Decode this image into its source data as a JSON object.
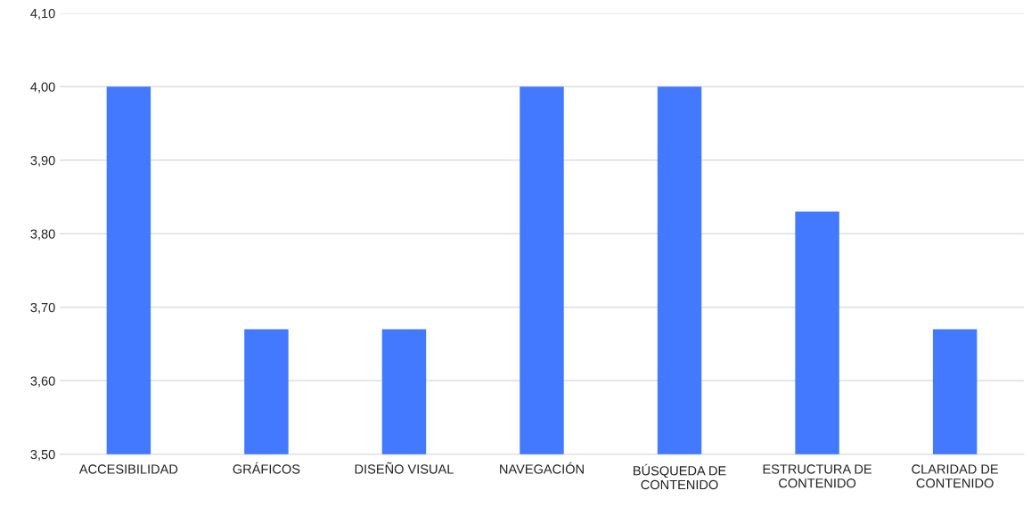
{
  "chart_data": {
    "type": "bar",
    "categories": [
      "ACCESIBILIDAD",
      "GRÁFICOS",
      "DISEÑO VISUAL",
      "NAVEGACIÓN",
      "BÚSQUEDA DE\nCONTENIDO",
      "ESTRUCTURA DE\nCONTENIDO",
      "CLARIDAD DE\nCONTENIDO"
    ],
    "values": [
      4.0,
      3.67,
      3.67,
      4.0,
      4.0,
      3.83,
      3.67
    ],
    "color": "#4279ff",
    "ylim": [
      3.5,
      4.1
    ],
    "yticks": [
      {
        "value": 3.5,
        "label": "3,50"
      },
      {
        "value": 3.6,
        "label": "3,60"
      },
      {
        "value": 3.7,
        "label": "3,70"
      },
      {
        "value": 3.8,
        "label": "3,80"
      },
      {
        "value": 3.9,
        "label": "3,90"
      },
      {
        "value": 4.0,
        "label": "4,00"
      },
      {
        "value": 4.1,
        "label": "4,10"
      }
    ],
    "grid": "y",
    "legend": false
  }
}
